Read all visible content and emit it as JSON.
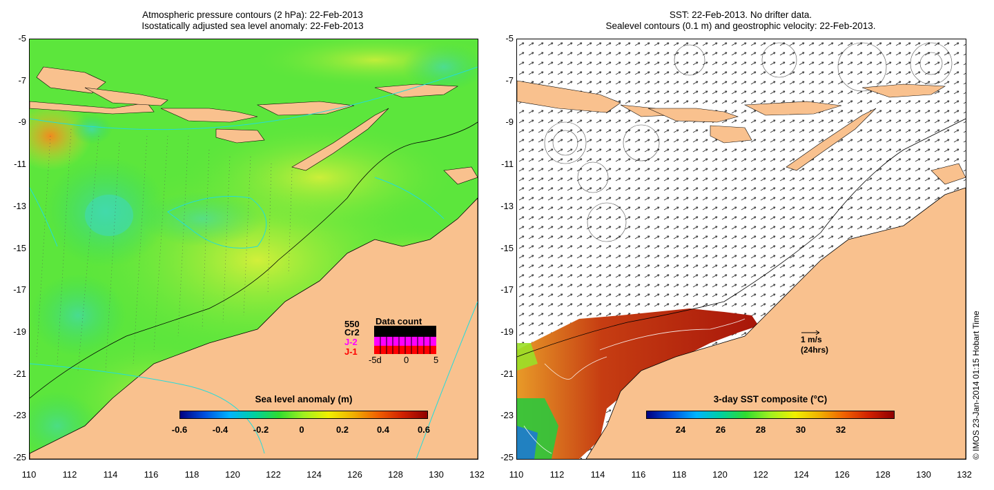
{
  "left_panel": {
    "title_line1": "Atmospheric pressure contours (2 hPa): 22-Feb-2013",
    "title_line2": "Isostatically adjusted sea level anomaly: 22-Feb-2013",
    "colorbar_title": "Sea level anomaly (m)",
    "colorbar_ticks": [
      "-0.6",
      "-0.4",
      "-0.2",
      "0",
      "0.2",
      "0.4",
      "0.6"
    ],
    "data_count_title": "Data count",
    "data_count_max": "550",
    "satellites": [
      "Cr2",
      "J-2",
      "J-1"
    ],
    "data_count_axis": [
      "-5d",
      "0",
      "5"
    ]
  },
  "right_panel": {
    "title_line1": "SST: 22-Feb-2013. No drifter data.",
    "title_line2": "Sealevel contours (0.1 m) and geostrophic velocity: 22-Feb-2013.",
    "colorbar_title": "3-day SST composite (°C)",
    "colorbar_ticks": [
      "24",
      "26",
      "28",
      "30",
      "32"
    ],
    "velocity_scale_line1": "1 m/s",
    "velocity_scale_line2": "(24hrs)"
  },
  "lat_ticks": [
    "-5",
    "-7",
    "-9",
    "-11",
    "-13",
    "-15",
    "-17",
    "-19",
    "-21",
    "-23",
    "-25"
  ],
  "lon_ticks": [
    "110",
    "112",
    "114",
    "116",
    "118",
    "120",
    "122",
    "124",
    "126",
    "128",
    "130",
    "132"
  ],
  "credit": "© IMOS 23-Jan-2014 01:15 Hobart Time",
  "colors": {
    "land": "#f9c18e",
    "ocean_green": "#5ce63c",
    "anomaly_yellow": "#c8f03c",
    "sst_red": "#b41e0a",
    "sst_orange": "#e06a1e",
    "contour_cyan": "#22dcdc",
    "jason2": "#ff00ff",
    "jason1": "#ff0000"
  }
}
